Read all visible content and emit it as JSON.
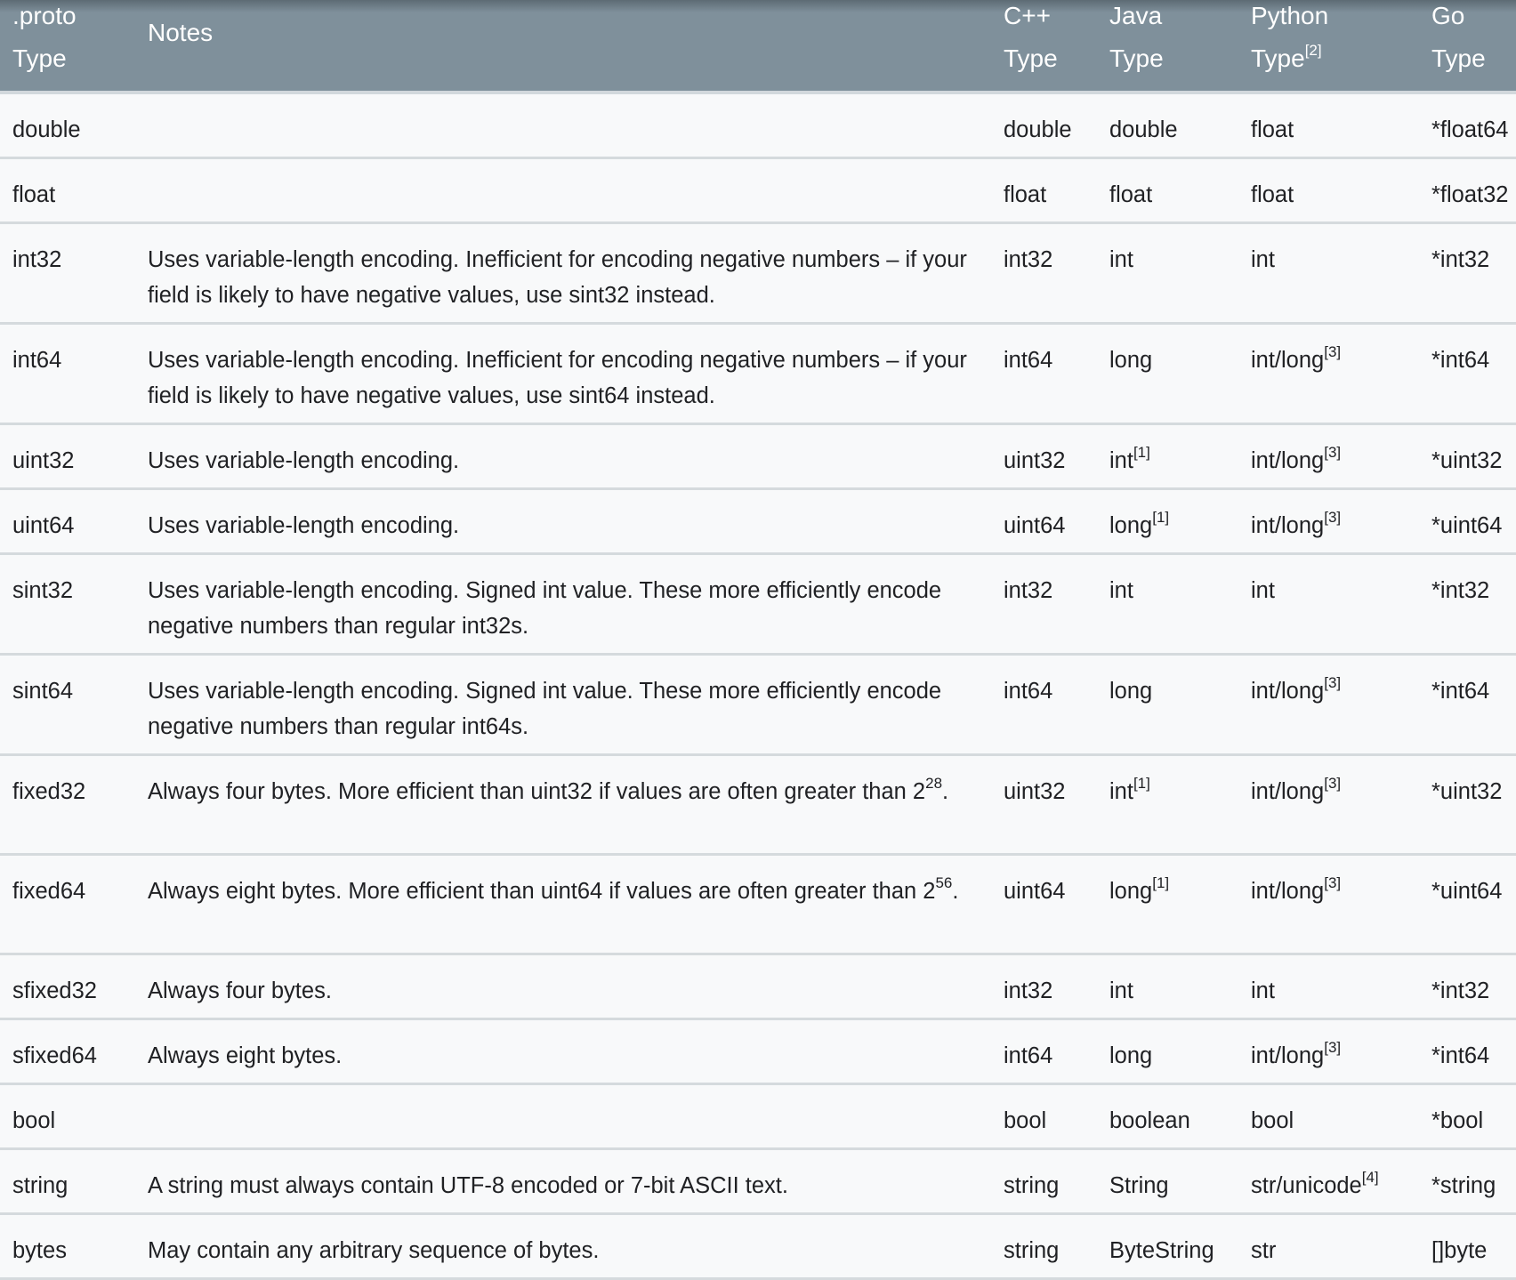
{
  "header": [
    {
      "line1": ".proto",
      "line2": "Type",
      "sup": ""
    },
    {
      "line1": "Notes",
      "line2": "",
      "sup": ""
    },
    {
      "line1": "C++",
      "line2": "Type",
      "sup": ""
    },
    {
      "line1": "Java",
      "line2": "Type",
      "sup": ""
    },
    {
      "line1": "Python",
      "line2": "Type",
      "sup": "[2]"
    },
    {
      "line1": "Go",
      "line2": "Type",
      "sup": ""
    }
  ],
  "colors": {
    "header_bg": "#7f909b",
    "row_bg": "#f8f9fa",
    "divider": "#d5dadd"
  },
  "rows": [
    {
      "proto": "double",
      "notes": {
        "text": ""
      },
      "cpp": "double",
      "java": {
        "text": "double"
      },
      "python": {
        "text": "float"
      },
      "go": "*float64"
    },
    {
      "proto": "float",
      "notes": {
        "text": ""
      },
      "cpp": "float",
      "java": {
        "text": "float"
      },
      "python": {
        "text": "float"
      },
      "go": "*float32"
    },
    {
      "proto": "int32",
      "notes": {
        "text": "Uses variable-length encoding. Inefficient for encoding negative numbers – if your field is likely to have negative values, use sint32 instead."
      },
      "cpp": "int32",
      "java": {
        "text": "int"
      },
      "python": {
        "text": "int"
      },
      "go": "*int32"
    },
    {
      "proto": "int64",
      "notes": {
        "text": "Uses variable-length encoding. Inefficient for encoding negative numbers – if your field is likely to have negative values, use sint64 instead."
      },
      "cpp": "int64",
      "java": {
        "text": "long"
      },
      "python": {
        "text": "int/long",
        "sup": "[3]"
      },
      "go": "*int64"
    },
    {
      "proto": "uint32",
      "notes": {
        "text": "Uses variable-length encoding."
      },
      "cpp": "uint32",
      "java": {
        "text": "int",
        "sup": "[1]"
      },
      "python": {
        "text": "int/long",
        "sup": "[3]"
      },
      "go": "*uint32"
    },
    {
      "proto": "uint64",
      "notes": {
        "text": "Uses variable-length encoding."
      },
      "cpp": "uint64",
      "java": {
        "text": "long",
        "sup": "[1]"
      },
      "python": {
        "text": "int/long",
        "sup": "[3]"
      },
      "go": "*uint64"
    },
    {
      "proto": "sint32",
      "notes": {
        "text": "Uses variable-length encoding. Signed int value. These more efficiently encode negative numbers than regular int32s."
      },
      "cpp": "int32",
      "java": {
        "text": "int"
      },
      "python": {
        "text": "int"
      },
      "go": "*int32"
    },
    {
      "proto": "sint64",
      "notes": {
        "text": "Uses variable-length encoding. Signed int value. These more efficiently encode negative numbers than regular int64s."
      },
      "cpp": "int64",
      "java": {
        "text": "long"
      },
      "python": {
        "text": "int/long",
        "sup": "[3]"
      },
      "go": "*int64"
    },
    {
      "proto": "fixed32",
      "notes": {
        "text": "Always four bytes. More efficient than uint32 if values are often greater than 2",
        "sup": "28",
        "after": "."
      },
      "cpp": "uint32",
      "java": {
        "text": "int",
        "sup": "[1]"
      },
      "python": {
        "text": "int/long",
        "sup": "[3]"
      },
      "go": "*uint32"
    },
    {
      "proto": "fixed64",
      "notes": {
        "text": "Always eight bytes. More efficient than uint64 if values are often greater than 2",
        "sup": "56",
        "after": "."
      },
      "cpp": "uint64",
      "java": {
        "text": "long",
        "sup": "[1]"
      },
      "python": {
        "text": "int/long",
        "sup": "[3]"
      },
      "go": "*uint64"
    },
    {
      "proto": "sfixed32",
      "notes": {
        "text": "Always four bytes."
      },
      "cpp": "int32",
      "java": {
        "text": "int"
      },
      "python": {
        "text": "int"
      },
      "go": "*int32"
    },
    {
      "proto": "sfixed64",
      "notes": {
        "text": "Always eight bytes."
      },
      "cpp": "int64",
      "java": {
        "text": "long"
      },
      "python": {
        "text": "int/long",
        "sup": "[3]"
      },
      "go": "*int64"
    },
    {
      "proto": "bool",
      "notes": {
        "text": ""
      },
      "cpp": "bool",
      "java": {
        "text": "boolean"
      },
      "python": {
        "text": "bool"
      },
      "go": "*bool"
    },
    {
      "proto": "string",
      "notes": {
        "text": "A string must always contain UTF-8 encoded or 7-bit ASCII text."
      },
      "cpp": "string",
      "java": {
        "text": "String"
      },
      "python": {
        "text": "str/unicode",
        "sup": "[4]"
      },
      "go": "*string"
    },
    {
      "proto": "bytes",
      "notes": {
        "text": "May contain any arbitrary sequence of bytes."
      },
      "cpp": "string",
      "java": {
        "text": "ByteString"
      },
      "python": {
        "text": "str"
      },
      "go": "[]byte"
    }
  ]
}
